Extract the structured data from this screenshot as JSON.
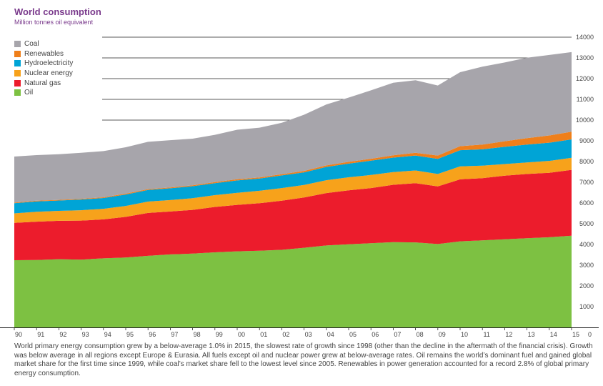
{
  "header": {
    "title": "World consumption",
    "subtitle": "Million tonnes oil equivalent"
  },
  "caption": "World primary energy consumption grew by a below-average 1.0% in 2015, the slowest rate of growth since 1998 (other than the decline in the aftermath of the financial crisis). Growth was below average in all regions except Europe & Eurasia. All fuels except oil and nuclear power grew at below-average rates. Oil remains the world’s dominant fuel and gained global market share for the first time since 1999, while coal’s market share fell to the lowest level since 2005. Renewables in power generation accounted for a record 2.8% of global primary energy consumption.",
  "chart_data": {
    "type": "area",
    "stacked": true,
    "title": "World consumption",
    "subtitle": "Million tonnes oil equivalent",
    "categories": [
      "90",
      "91",
      "92",
      "93",
      "94",
      "95",
      "96",
      "97",
      "98",
      "99",
      "00",
      "01",
      "02",
      "03",
      "04",
      "05",
      "06",
      "07",
      "08",
      "09",
      "10",
      "11",
      "12",
      "13",
      "14",
      "15"
    ],
    "ylim": [
      0,
      14000
    ],
    "y_ticks": [
      0,
      1000,
      2000,
      3000,
      4000,
      5000,
      6000,
      7000,
      8000,
      9000,
      10000,
      11000,
      12000,
      13000,
      14000
    ],
    "y_axis_side": "right",
    "grid": "horizontal lines at 10000–14000 only",
    "legend_position": "top-left",
    "series": [
      {
        "name": "Oil",
        "color": "#7dc142",
        "values": [
          3240,
          3250,
          3290,
          3270,
          3330,
          3370,
          3450,
          3520,
          3560,
          3620,
          3670,
          3700,
          3740,
          3840,
          3950,
          4010,
          4060,
          4110,
          4100,
          4020,
          4150,
          4200,
          4250,
          4300,
          4350,
          4420
        ]
      },
      {
        "name": "Natural gas",
        "color": "#ec1c2c",
        "values": [
          1800,
          1850,
          1850,
          1880,
          1880,
          1960,
          2070,
          2070,
          2110,
          2190,
          2240,
          2290,
          2370,
          2430,
          2530,
          2600,
          2660,
          2770,
          2860,
          2780,
          2990,
          3000,
          3070,
          3100,
          3110,
          3180
        ]
      },
      {
        "name": "Nuclear energy",
        "color": "#f7a21b",
        "values": [
          460,
          480,
          480,
          500,
          510,
          530,
          550,
          550,
          560,
          570,
          580,
          600,
          610,
          600,
          620,
          630,
          630,
          610,
          610,
          600,
          630,
          600,
          560,
          560,
          570,
          580
        ]
      },
      {
        "name": "Hydroelectricity",
        "color": "#00a4d6",
        "values": [
          490,
          500,
          500,
          520,
          520,
          550,
          560,
          570,
          580,
          580,
          600,
          590,
          610,
          610,
          640,
          660,
          690,
          700,
          720,
          730,
          780,
          790,
          830,
          860,
          880,
          890
        ]
      },
      {
        "name": "Renewables",
        "color": "#ef7f1a",
        "values": [
          30,
          30,
          30,
          35,
          35,
          40,
          40,
          40,
          45,
          50,
          55,
          55,
          60,
          70,
          75,
          85,
          95,
          110,
          130,
          160,
          190,
          230,
          270,
          310,
          350,
          370
        ]
      },
      {
        "name": "Coal",
        "color": "#a7a5ab",
        "values": [
          2220,
          2200,
          2200,
          2220,
          2230,
          2240,
          2280,
          2280,
          2250,
          2280,
          2390,
          2400,
          2480,
          2710,
          2940,
          3100,
          3300,
          3500,
          3500,
          3380,
          3570,
          3760,
          3800,
          3880,
          3880,
          3840
        ]
      }
    ]
  }
}
